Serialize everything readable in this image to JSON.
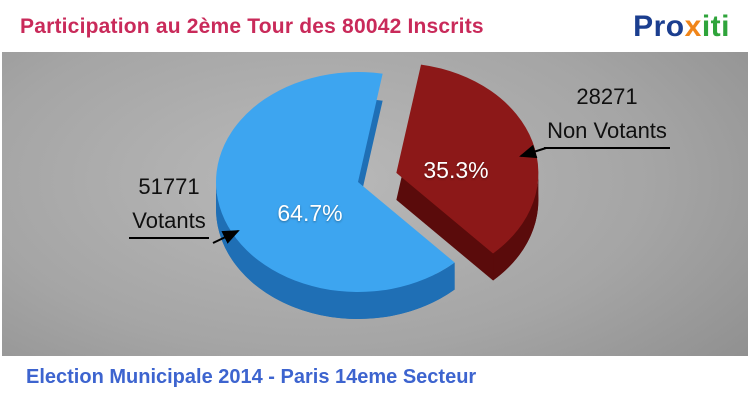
{
  "header": {
    "title": "Participation au 2ème Tour des 80042 Inscrits",
    "logo": {
      "part1": "Pro",
      "part2": "x",
      "part3": "iti"
    }
  },
  "footer": {
    "text": "Election Municipale 2014 - Paris 14eme Secteur"
  },
  "chart_data": {
    "type": "pie",
    "title": "Participation au 2ème Tour des 80042 Inscrits",
    "total_inscrits": 80042,
    "start_angle_deg": -80,
    "exploded_slice": "Non Votants",
    "legend_position": "callouts",
    "slices": [
      {
        "label": "Votants",
        "value": "51771",
        "pct": 64.7,
        "pct_label": "64.7%",
        "color": "#3da5f0",
        "side_color": "#1f6fb5"
      },
      {
        "label": "Non Votants",
        "value": "28271",
        "pct": 35.3,
        "pct_label": "35.3%",
        "color": "#8c1818",
        "side_color": "#5a0b0b"
      }
    ]
  }
}
